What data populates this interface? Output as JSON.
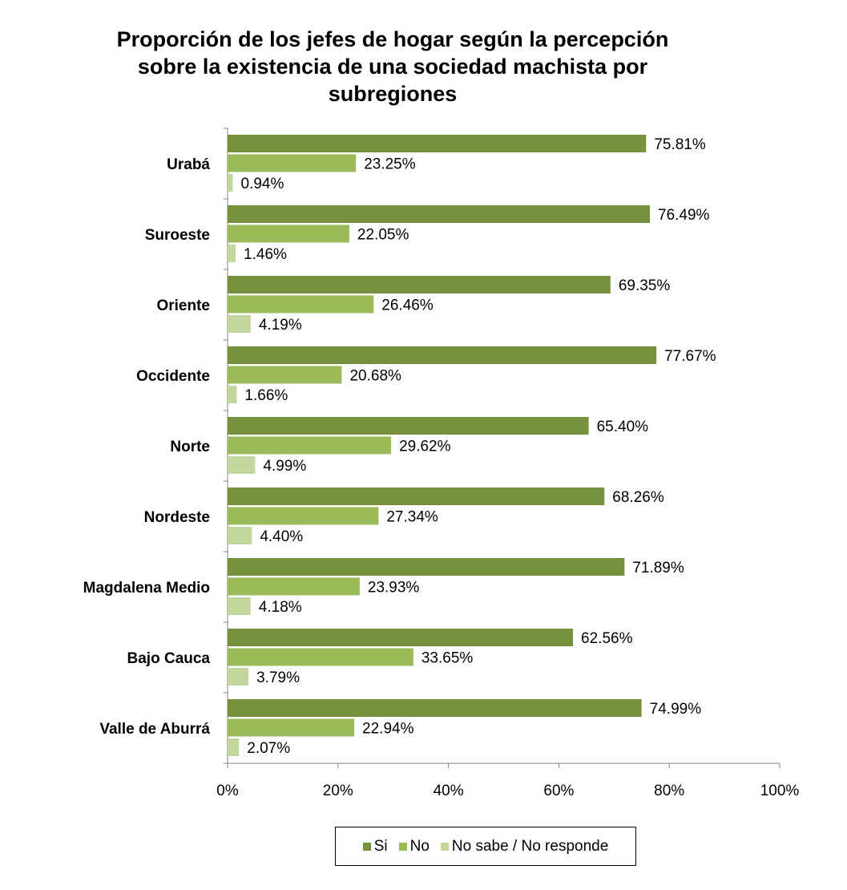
{
  "chart_data": {
    "type": "bar",
    "orientation": "horizontal",
    "title_lines": [
      "Proporción de los jefes de hogar según la percepción",
      "sobre la existencia de una sociedad machista por",
      "subregiones"
    ],
    "categories": [
      "Urabá",
      "Suroeste",
      "Oriente",
      "Occidente",
      "Norte",
      "Nordeste",
      "Magdalena Medio",
      "Bajo Cauca",
      "Valle de Aburrá"
    ],
    "series": [
      {
        "name": "Si",
        "color": "#76923c",
        "values": [
          75.81,
          76.49,
          69.35,
          77.67,
          65.4,
          68.26,
          71.89,
          62.56,
          74.99
        ],
        "labels": [
          "75.81%",
          "76.49%",
          "69.35%",
          "77.67%",
          "65.40%",
          "68.26%",
          "71.89%",
          "62.56%",
          "74.99%"
        ]
      },
      {
        "name": "No",
        "color": "#9bbb59",
        "values": [
          23.25,
          22.05,
          26.46,
          20.68,
          29.62,
          27.34,
          23.93,
          33.65,
          22.94
        ],
        "labels": [
          "23.25%",
          "22.05%",
          "26.46%",
          "20.68%",
          "29.62%",
          "27.34%",
          "23.93%",
          "33.65%",
          "22.94%"
        ]
      },
      {
        "name": "No sabe / No responde",
        "color": "#c3d69b",
        "values": [
          0.94,
          1.46,
          4.19,
          1.66,
          4.99,
          4.4,
          4.18,
          3.79,
          2.07
        ],
        "labels": [
          "0.94%",
          "1.46%",
          "4.19%",
          "1.66%",
          "4.99%",
          "4.40%",
          "4.18%",
          "3.79%",
          "2.07%"
        ]
      }
    ],
    "x_ticks": [
      "0%",
      "20%",
      "40%",
      "60%",
      "80%",
      "100%"
    ],
    "xlim": [
      0,
      100
    ],
    "grid": false,
    "legend_position": "bottom"
  }
}
